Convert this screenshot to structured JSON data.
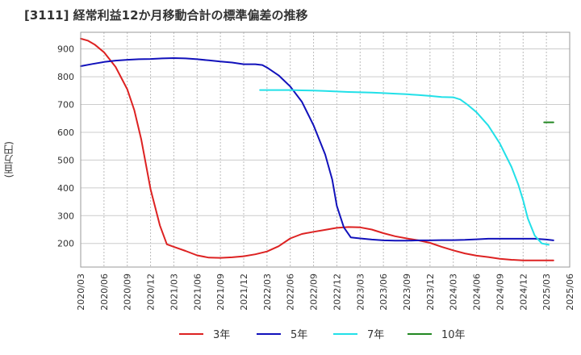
{
  "chart_data": {
    "type": "line",
    "title": "[3111]  経常利益12か月移動合計の標準偏差の推移",
    "ylabel": "(百万円)",
    "xlabel": "",
    "ylim": [
      115,
      960
    ],
    "yticks": [
      200,
      300,
      400,
      500,
      600,
      700,
      800,
      900
    ],
    "x_categories": [
      "2020/03",
      "2020/06",
      "2020/09",
      "2020/12",
      "2021/03",
      "2021/06",
      "2021/09",
      "2021/12",
      "2022/03",
      "2022/06",
      "2022/09",
      "2022/12",
      "2023/03",
      "2023/06",
      "2023/09",
      "2023/12",
      "2024/03",
      "2024/06",
      "2024/09",
      "2024/12",
      "2025/03",
      "2025/06"
    ],
    "grid": true,
    "legend_position": "bottom",
    "series": [
      {
        "name": "3年",
        "color": "#dd2222",
        "points": [
          [
            0,
            937
          ],
          [
            0.3,
            930
          ],
          [
            0.6,
            916
          ],
          [
            1,
            888
          ],
          [
            1.5,
            835
          ],
          [
            2,
            755
          ],
          [
            2.3,
            680
          ],
          [
            2.6,
            575
          ],
          [
            3,
            395
          ],
          [
            3.4,
            265
          ],
          [
            3.7,
            197
          ],
          [
            4,
            188
          ],
          [
            4.5,
            173
          ],
          [
            5,
            157
          ],
          [
            5.5,
            149
          ],
          [
            6,
            148
          ],
          [
            6.5,
            150
          ],
          [
            7,
            154
          ],
          [
            7.5,
            161
          ],
          [
            8,
            171
          ],
          [
            8.5,
            190
          ],
          [
            9,
            218
          ],
          [
            9.5,
            234
          ],
          [
            10,
            242
          ],
          [
            10.5,
            249
          ],
          [
            11,
            256
          ],
          [
            11.5,
            259
          ],
          [
            12,
            258
          ],
          [
            12.5,
            250
          ],
          [
            13,
            237
          ],
          [
            13.5,
            226
          ],
          [
            14,
            218
          ],
          [
            14.5,
            211
          ],
          [
            15,
            202
          ],
          [
            15.5,
            188
          ],
          [
            16,
            175
          ],
          [
            16.5,
            164
          ],
          [
            17,
            156
          ],
          [
            17.5,
            151
          ],
          [
            18,
            145
          ],
          [
            18.5,
            141
          ],
          [
            19,
            139
          ],
          [
            19.5,
            139
          ],
          [
            20,
            139
          ],
          [
            20.3,
            139
          ]
        ]
      },
      {
        "name": "5年",
        "color": "#1111bb",
        "points": [
          [
            0,
            838
          ],
          [
            0.5,
            846
          ],
          [
            1,
            853
          ],
          [
            1.5,
            858
          ],
          [
            2,
            861
          ],
          [
            2.5,
            863
          ],
          [
            3,
            864
          ],
          [
            3.5,
            866
          ],
          [
            4,
            867
          ],
          [
            4.5,
            866
          ],
          [
            5,
            863
          ],
          [
            5.5,
            859
          ],
          [
            6,
            855
          ],
          [
            6.5,
            851
          ],
          [
            7,
            845
          ],
          [
            7.5,
            845
          ],
          [
            7.8,
            842
          ],
          [
            8,
            833
          ],
          [
            8.5,
            805
          ],
          [
            9,
            765
          ],
          [
            9.5,
            710
          ],
          [
            10,
            625
          ],
          [
            10.5,
            520
          ],
          [
            10.8,
            430
          ],
          [
            11,
            335
          ],
          [
            11.3,
            258
          ],
          [
            11.6,
            222
          ],
          [
            12,
            218
          ],
          [
            12.5,
            214
          ],
          [
            13,
            211
          ],
          [
            13.5,
            210
          ],
          [
            14,
            210
          ],
          [
            14.5,
            211
          ],
          [
            15,
            211
          ],
          [
            15.5,
            212
          ],
          [
            16,
            212
          ],
          [
            16.5,
            213
          ],
          [
            17,
            215
          ],
          [
            17.5,
            217
          ],
          [
            18,
            217
          ],
          [
            18.5,
            217
          ],
          [
            19,
            217
          ],
          [
            19.5,
            217
          ],
          [
            20,
            214
          ],
          [
            20.3,
            211
          ]
        ]
      },
      {
        "name": "7年",
        "color": "#22e0e8",
        "points": [
          [
            7.7,
            752
          ],
          [
            8,
            752
          ],
          [
            8.5,
            752
          ],
          [
            9,
            752
          ],
          [
            9.5,
            751
          ],
          [
            10,
            750
          ],
          [
            10.5,
            749
          ],
          [
            11,
            747
          ],
          [
            11.5,
            745
          ],
          [
            12,
            744
          ],
          [
            12.5,
            743
          ],
          [
            13,
            741
          ],
          [
            13.5,
            739
          ],
          [
            14,
            737
          ],
          [
            14.5,
            734
          ],
          [
            15,
            731
          ],
          [
            15.5,
            727
          ],
          [
            16,
            726
          ],
          [
            16.3,
            718
          ],
          [
            16.6,
            700
          ],
          [
            17,
            672
          ],
          [
            17.5,
            625
          ],
          [
            18,
            560
          ],
          [
            18.5,
            475
          ],
          [
            18.8,
            410
          ],
          [
            19,
            355
          ],
          [
            19.2,
            290
          ],
          [
            19.5,
            228
          ],
          [
            19.8,
            200
          ],
          [
            20.1,
            195
          ]
        ]
      },
      {
        "name": "10年",
        "color": "#228822",
        "points": [
          [
            19.9,
            636
          ],
          [
            20.3,
            636
          ]
        ]
      }
    ]
  }
}
